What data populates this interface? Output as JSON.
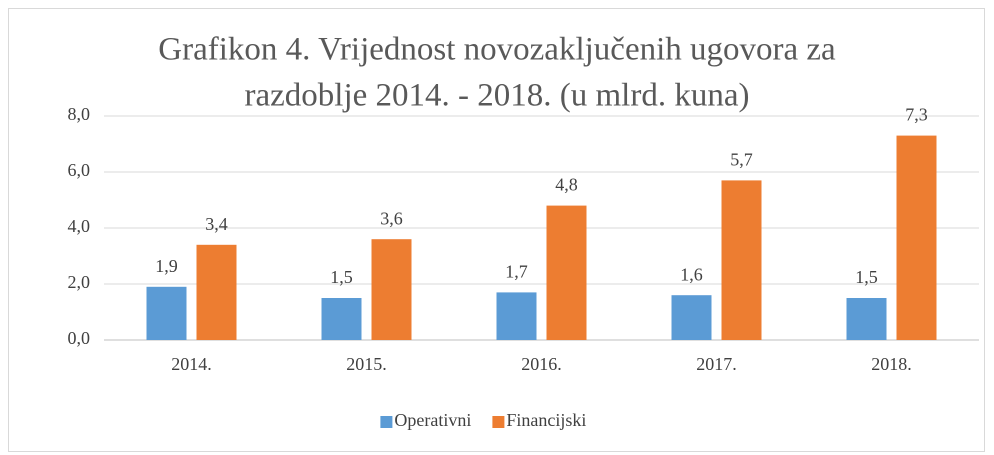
{
  "chart_data": {
    "type": "bar",
    "title": [
      "Grafikon 4. Vrijednost novozaključenih ugovora za",
      "razdoblje 2014. - 2018. (u mlrd. kuna)"
    ],
    "categories": [
      "2014.",
      "2015.",
      "2016.",
      "2017.",
      "2018."
    ],
    "series": [
      {
        "name": "Operativni",
        "color": "#5b9bd5",
        "values": [
          1.9,
          1.5,
          1.7,
          1.6,
          1.5
        ],
        "value_labels": [
          "1,9",
          "1,5",
          "1,7",
          "1,6",
          "1,5"
        ]
      },
      {
        "name": "Financijski",
        "color": "#ed7d31",
        "values": [
          3.4,
          3.6,
          4.8,
          5.7,
          7.3
        ],
        "value_labels": [
          "3,4",
          "3,6",
          "4,8",
          "5,7",
          "7,3"
        ]
      }
    ],
    "ylim": [
      0,
      8
    ],
    "yticks": [
      {
        "value": 0,
        "label": "0,0"
      },
      {
        "value": 2,
        "label": "2,0"
      },
      {
        "value": 4,
        "label": "4,0"
      },
      {
        "value": 6,
        "label": "6,0"
      },
      {
        "value": 8,
        "label": "8,0"
      }
    ],
    "grid": true,
    "legend": "bottom"
  }
}
